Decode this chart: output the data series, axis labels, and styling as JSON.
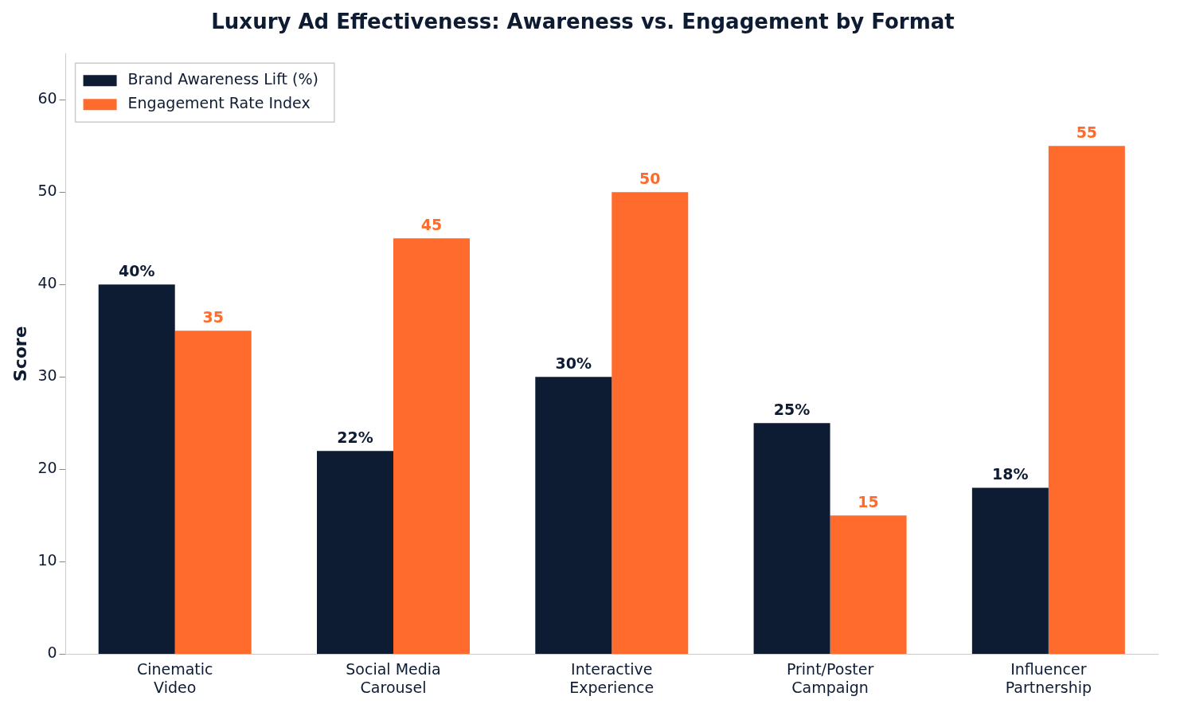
{
  "chart_data": {
    "type": "bar",
    "title": "Luxury Ad Effectiveness: Awareness vs. Engagement by Format",
    "ylabel": "Score",
    "categories": [
      "Cinematic\nVideo",
      "Social Media\nCarousel",
      "Interactive\nExperience",
      "Print/Poster\nCampaign",
      "Influencer\nPartnership"
    ],
    "series": [
      {
        "name": "Brand Awareness Lift (%)",
        "color": "#0d1b33",
        "values": [
          40,
          22,
          30,
          25,
          18
        ],
        "value_labels": [
          "40%",
          "22%",
          "30%",
          "25%",
          "18%"
        ]
      },
      {
        "name": "Engagement Rate Index",
        "color": "#ff6b2c",
        "values": [
          35,
          45,
          50,
          15,
          55
        ],
        "value_labels": [
          "35",
          "45",
          "50",
          "15",
          "55"
        ]
      }
    ],
    "ylim": [
      0,
      65
    ],
    "yticks": [
      0,
      10,
      20,
      30,
      40,
      50,
      60
    ],
    "grid": false,
    "legend": "top left"
  }
}
